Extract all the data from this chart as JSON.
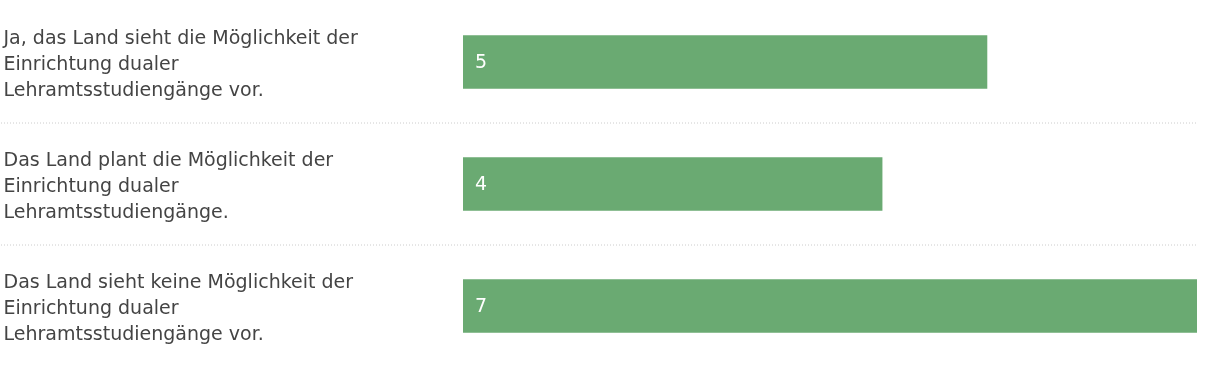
{
  "chart_data": {
    "type": "bar",
    "orientation": "horizontal",
    "categories": [
      "Ja, das Land sieht die Möglichkeit der Einrichtung dualer Lehramtsstudiengänge vor.",
      "Das Land plant die Möglichkeit der Einrichtung dualer Lehramtsstudiengänge.",
      "Das Land sieht keine Möglichkeit der Einrichtung dualer Lehramtsstudiengänge vor."
    ],
    "values": [
      5,
      4,
      7
    ],
    "color": "#6aaa72",
    "data_labels": true,
    "tick_labels": "y"
  }
}
